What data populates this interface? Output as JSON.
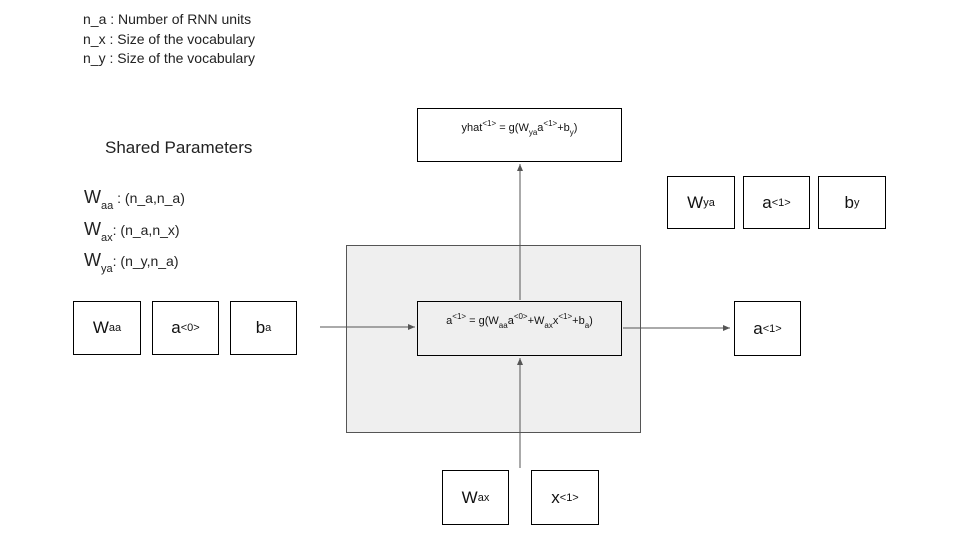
{
  "legend": {
    "na": "n_a : Number of RNN units",
    "nx": "n_x : Size of the vocabulary",
    "ny": "n_y : Size of the vocabulary"
  },
  "shared": {
    "title": "Shared Parameters",
    "waa_sym": "W",
    "waa_sub": "aa",
    "waa_shape": ": (n_a,n_a)",
    "wax_sym": "W",
    "wax_sub": "ax",
    "wax_shape": ": (n_a,n_x)",
    "wya_sym": "W",
    "wya_sub": "ya",
    "wya_shape": ": (n_y,n_a)"
  },
  "inputs": {
    "waa_sym": "W",
    "waa_sub": "aa",
    "a0_sym": "a",
    "a0_sup": "<0>",
    "ba_sym": "b",
    "ba_sub": "a",
    "wax_sym": "W",
    "wax_sub": "ax",
    "x1_sym": "x",
    "x1_sup": "<1>"
  },
  "outputs": {
    "wya_sym": "W",
    "wya_sub": "ya",
    "a1_sym": "a",
    "a1_sup": "<1>",
    "by_sym": "b",
    "by_sub": "y",
    "a1out_sym": "a",
    "a1out_sup": "<1>"
  },
  "equations": {
    "cell": {
      "t1": "a",
      "s1": "<1>",
      "t2": " = g(W",
      "s2": "aa",
      "t3": "a",
      "s3": "<0>",
      "t4": "+W",
      "s4": "ax",
      "t5": "x",
      "s5": "<1>",
      "t6": "+b",
      "s6": "a",
      "t7": ")"
    },
    "yhat": {
      "t1": "yhat",
      "s1": "<1>",
      "t2": " = g(W",
      "s2": "ya",
      "t3": "a",
      "s3": "<1>",
      "t4": "+b",
      "s4": "y",
      "t5": ")"
    }
  },
  "colors": {
    "cell_fill": "#efefef",
    "arrow": "#555555"
  }
}
